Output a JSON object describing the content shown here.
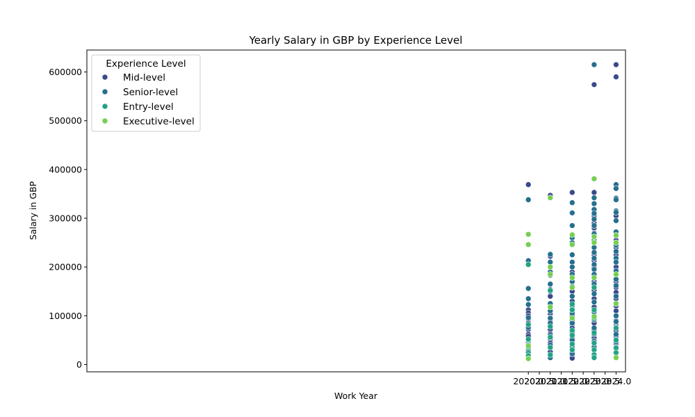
{
  "chart_data": {
    "type": "scatter",
    "title": "Yearly Salary in GBP by Experience Level",
    "xlabel": "Work Year",
    "ylabel": "Salary in GBP",
    "xlim": [
      1999.87,
      2024.43
    ],
    "ylim": [
      -15000,
      645000
    ],
    "xticks": [
      "2020.0",
      "2020.5",
      "2021.0",
      "2021.5",
      "2022.0",
      "2022.5",
      "2023.0",
      "2023.5",
      "2024.0"
    ],
    "yticks": [
      "0",
      "100000",
      "200000",
      "300000",
      "400000",
      "500000",
      "600000"
    ],
    "grid": false,
    "legend": {
      "title": "Experience Level",
      "placement": "top-left",
      "entries": [
        {
          "name": "Mid-level",
          "color": "#3b4a8c"
        },
        {
          "name": "Senior-level",
          "color": "#266f8e"
        },
        {
          "name": "Entry-level",
          "color": "#22a384"
        },
        {
          "name": "Executive-level",
          "color": "#76cf52"
        }
      ]
    },
    "series": [
      {
        "name": "Mid-level",
        "color": "#3b4a8c",
        "points": [
          [
            2020,
            369000
          ],
          [
            2020,
            112000
          ],
          [
            2020,
            106000
          ],
          [
            2020,
            100000
          ],
          [
            2020,
            93000
          ],
          [
            2020,
            85000
          ],
          [
            2020,
            72000
          ],
          [
            2020,
            62000
          ],
          [
            2020,
            58000
          ],
          [
            2020,
            45000
          ],
          [
            2020,
            32000
          ],
          [
            2020,
            28000
          ],
          [
            2020,
            16000
          ],
          [
            2021,
            347000
          ],
          [
            2021,
            222000
          ],
          [
            2021,
            154000
          ],
          [
            2021,
            140000
          ],
          [
            2021,
            120000
          ],
          [
            2021,
            104000
          ],
          [
            2021,
            96000
          ],
          [
            2021,
            88000
          ],
          [
            2021,
            80000
          ],
          [
            2021,
            72000
          ],
          [
            2021,
            63000
          ],
          [
            2021,
            52000
          ],
          [
            2021,
            44000
          ],
          [
            2021,
            35000
          ],
          [
            2021,
            26000
          ],
          [
            2022,
            353000
          ],
          [
            2022,
            190000
          ],
          [
            2022,
            150000
          ],
          [
            2022,
            130000
          ],
          [
            2022,
            110000
          ],
          [
            2022,
            100000
          ],
          [
            2022,
            90000
          ],
          [
            2022,
            82000
          ],
          [
            2022,
            75000
          ],
          [
            2022,
            68000
          ],
          [
            2022,
            60000
          ],
          [
            2022,
            54000
          ],
          [
            2022,
            48000
          ],
          [
            2022,
            40000
          ],
          [
            2022,
            32000
          ],
          [
            2022,
            25000
          ],
          [
            2022,
            18000
          ],
          [
            2022,
            13000
          ],
          [
            2023,
            574000
          ],
          [
            2023,
            353000
          ],
          [
            2023,
            305000
          ],
          [
            2023,
            290000
          ],
          [
            2023,
            280000
          ],
          [
            2023,
            270000
          ],
          [
            2023,
            250000
          ],
          [
            2023,
            240000
          ],
          [
            2023,
            225000
          ],
          [
            2023,
            213000
          ],
          [
            2023,
            200000
          ],
          [
            2023,
            180000
          ],
          [
            2023,
            170000
          ],
          [
            2023,
            152000
          ],
          [
            2023,
            135000
          ],
          [
            2023,
            118000
          ],
          [
            2023,
            100000
          ],
          [
            2023,
            85000
          ],
          [
            2023,
            70000
          ],
          [
            2023,
            55000
          ],
          [
            2023,
            42000
          ],
          [
            2023,
            30000
          ],
          [
            2024,
            615000
          ],
          [
            2024,
            590000
          ],
          [
            2024,
            305000
          ],
          [
            2024,
            255000
          ],
          [
            2024,
            240000
          ],
          [
            2024,
            225000
          ],
          [
            2024,
            200000
          ],
          [
            2024,
            185000
          ],
          [
            2024,
            170000
          ],
          [
            2024,
            158000
          ],
          [
            2024,
            148000
          ],
          [
            2024,
            135000
          ],
          [
            2024,
            120000
          ],
          [
            2024,
            110000
          ],
          [
            2024,
            100000
          ],
          [
            2024,
            90000
          ],
          [
            2024,
            80000
          ],
          [
            2024,
            70000
          ],
          [
            2024,
            58000
          ],
          [
            2024,
            50000
          ],
          [
            2024,
            42000
          ],
          [
            2024,
            35000
          ],
          [
            2024,
            26000
          ]
        ]
      },
      {
        "name": "Senior-level",
        "color": "#266f8e",
        "points": [
          [
            2020,
            338000
          ],
          [
            2020,
            213000
          ],
          [
            2020,
            156000
          ],
          [
            2020,
            135000
          ],
          [
            2020,
            123000
          ],
          [
            2020,
            96000
          ],
          [
            2020,
            76000
          ],
          [
            2020,
            50000
          ],
          [
            2021,
            226000
          ],
          [
            2021,
            210000
          ],
          [
            2021,
            190000
          ],
          [
            2021,
            183000
          ],
          [
            2021,
            165000
          ],
          [
            2021,
            150000
          ],
          [
            2021,
            125000
          ],
          [
            2021,
            110000
          ],
          [
            2021,
            95000
          ],
          [
            2021,
            85000
          ],
          [
            2021,
            60000
          ],
          [
            2021,
            40000
          ],
          [
            2021,
            14000
          ],
          [
            2022,
            332000
          ],
          [
            2022,
            311000
          ],
          [
            2022,
            285000
          ],
          [
            2022,
            260000
          ],
          [
            2022,
            250000
          ],
          [
            2022,
            225000
          ],
          [
            2022,
            210000
          ],
          [
            2022,
            200000
          ],
          [
            2022,
            185000
          ],
          [
            2022,
            170000
          ],
          [
            2022,
            160000
          ],
          [
            2022,
            140000
          ],
          [
            2022,
            120000
          ],
          [
            2022,
            105000
          ],
          [
            2022,
            85000
          ],
          [
            2022,
            65000
          ],
          [
            2022,
            50000
          ],
          [
            2022,
            36000
          ],
          [
            2022,
            22000
          ],
          [
            2023,
            615000
          ],
          [
            2023,
            342000
          ],
          [
            2023,
            330000
          ],
          [
            2023,
            318000
          ],
          [
            2023,
            310000
          ],
          [
            2023,
            298000
          ],
          [
            2023,
            285000
          ],
          [
            2023,
            268000
          ],
          [
            2023,
            255000
          ],
          [
            2023,
            240000
          ],
          [
            2023,
            230000
          ],
          [
            2023,
            218000
          ],
          [
            2023,
            205000
          ],
          [
            2023,
            195000
          ],
          [
            2023,
            185000
          ],
          [
            2023,
            165000
          ],
          [
            2023,
            145000
          ],
          [
            2023,
            128000
          ],
          [
            2023,
            108000
          ],
          [
            2023,
            92000
          ],
          [
            2023,
            75000
          ],
          [
            2023,
            62000
          ],
          [
            2023,
            48000
          ],
          [
            2023,
            36000
          ],
          [
            2023,
            22000
          ],
          [
            2023,
            16000
          ],
          [
            2024,
            369000
          ],
          [
            2024,
            361000
          ],
          [
            2024,
            341000
          ],
          [
            2024,
            338000
          ],
          [
            2024,
            315000
          ],
          [
            2024,
            312000
          ],
          [
            2024,
            295000
          ],
          [
            2024,
            272000
          ],
          [
            2024,
            265000
          ],
          [
            2024,
            250000
          ],
          [
            2024,
            245000
          ],
          [
            2024,
            232000
          ],
          [
            2024,
            218000
          ],
          [
            2024,
            210000
          ],
          [
            2024,
            192000
          ],
          [
            2024,
            175000
          ],
          [
            2024,
            162000
          ],
          [
            2024,
            140000
          ],
          [
            2024,
            125000
          ],
          [
            2024,
            100000
          ],
          [
            2024,
            88000
          ],
          [
            2024,
            76000
          ],
          [
            2024,
            62000
          ],
          [
            2024,
            46000
          ],
          [
            2024,
            32000
          ],
          [
            2024,
            15000
          ]
        ]
      },
      {
        "name": "Entry-level",
        "color": "#22a384",
        "points": [
          [
            2020,
            205000
          ],
          [
            2020,
            82000
          ],
          [
            2020,
            52000
          ],
          [
            2020,
            40000
          ],
          [
            2020,
            35000
          ],
          [
            2020,
            24000
          ],
          [
            2020,
            18000
          ],
          [
            2021,
            152000
          ],
          [
            2021,
            78000
          ],
          [
            2021,
            56000
          ],
          [
            2021,
            35000
          ],
          [
            2021,
            20000
          ],
          [
            2022,
            124000
          ],
          [
            2022,
            112000
          ],
          [
            2022,
            70000
          ],
          [
            2022,
            60000
          ],
          [
            2022,
            42000
          ],
          [
            2022,
            30000
          ],
          [
            2023,
            158000
          ],
          [
            2023,
            112000
          ],
          [
            2023,
            95000
          ],
          [
            2023,
            65000
          ],
          [
            2023,
            44000
          ],
          [
            2023,
            30000
          ],
          [
            2023,
            20000
          ],
          [
            2023,
            14000
          ],
          [
            2024,
            75000
          ],
          [
            2024,
            50000
          ],
          [
            2024,
            34000
          ],
          [
            2024,
            24000
          ],
          [
            2024,
            14000
          ]
        ]
      },
      {
        "name": "Executive-level",
        "color": "#76cf52",
        "points": [
          [
            2020,
            267000
          ],
          [
            2020,
            246000
          ],
          [
            2020,
            38000
          ],
          [
            2020,
            12000
          ],
          [
            2021,
            342000
          ],
          [
            2021,
            200000
          ],
          [
            2021,
            185000
          ],
          [
            2021,
            118000
          ],
          [
            2022,
            266000
          ],
          [
            2022,
            246000
          ],
          [
            2022,
            178000
          ],
          [
            2022,
            158000
          ],
          [
            2022,
            95000
          ],
          [
            2023,
            381000
          ],
          [
            2023,
            262000
          ],
          [
            2023,
            250000
          ],
          [
            2023,
            178000
          ],
          [
            2023,
            98000
          ],
          [
            2024,
            265000
          ],
          [
            2024,
            250000
          ],
          [
            2024,
            185000
          ],
          [
            2024,
            125000
          ],
          [
            2024,
            14000
          ]
        ]
      }
    ]
  }
}
